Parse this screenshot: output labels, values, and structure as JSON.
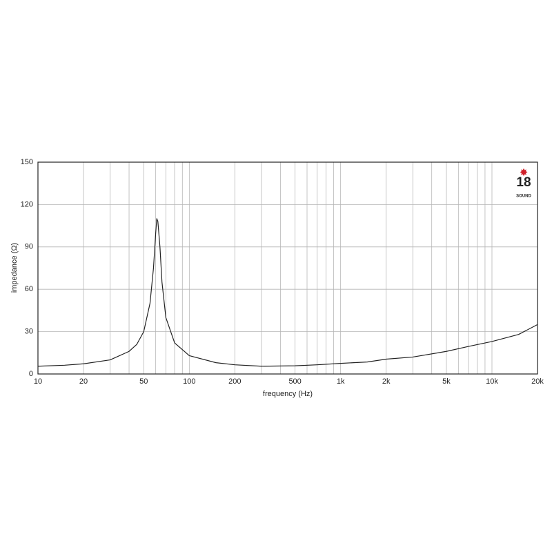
{
  "chart_data": {
    "type": "line",
    "xlabel": "frequency (Hz)",
    "ylabel": "impedance (Ω)",
    "xscale": "log",
    "grid": true,
    "xlim": [
      10,
      20000
    ],
    "ylim": [
      0,
      150
    ],
    "xticks": [
      10,
      20,
      50,
      100,
      200,
      500,
      {
        "value": 1000,
        "label": "1k"
      },
      {
        "value": 2000,
        "label": "2k"
      },
      {
        "value": 5000,
        "label": "5k"
      },
      {
        "value": 10000,
        "label": "10k"
      },
      {
        "value": 20000,
        "label": "20k"
      }
    ],
    "xgrid": [
      30,
      40,
      60,
      70,
      80,
      90,
      300,
      400,
      600,
      700,
      800,
      900,
      3000,
      4000,
      6000,
      7000,
      8000,
      9000
    ],
    "yticks": [
      0,
      30,
      60,
      90,
      120,
      150
    ],
    "x": [
      10,
      15,
      20,
      30,
      40,
      45,
      50,
      55,
      58,
      60,
      61,
      62,
      64,
      66,
      70,
      80,
      100,
      150,
      200,
      300,
      500,
      700,
      1000,
      1500,
      2000,
      3000,
      5000,
      7000,
      10000,
      15000,
      20000
    ],
    "series": [
      {
        "color": "#222222",
        "values": [
          5.5,
          6.2,
          7.2,
          10,
          16,
          21,
          30,
          50,
          75,
          100,
          110,
          108,
          90,
          65,
          40,
          22,
          13,
          8,
          6.5,
          5.5,
          5.8,
          6.5,
          7.5,
          8.5,
          10.5,
          12,
          16,
          19.5,
          23,
          28,
          35
        ]
      }
    ]
  },
  "logo": {
    "number": "18",
    "name": "SOUND"
  }
}
